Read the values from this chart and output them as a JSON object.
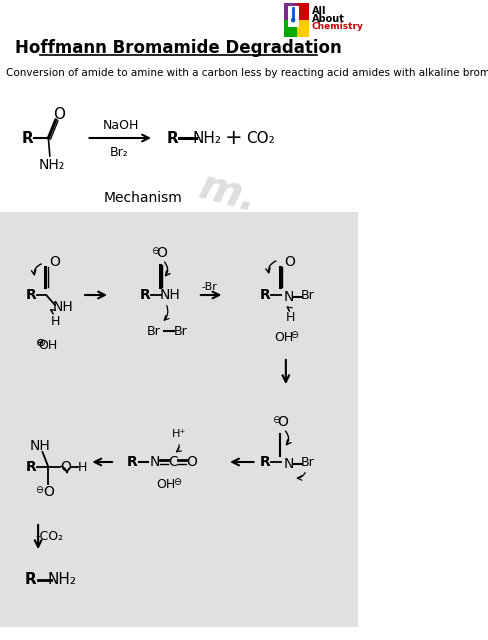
{
  "title": "Hoffmann Bromamide Degradation",
  "subtitle": "Conversion of amide to amine with a carbon less by reacting acid amides with alkaline bromine.",
  "bg_color": "#ffffff",
  "logo_colors": {
    "purple": "#7B2D8B",
    "red": "#CC0000",
    "green": "#00AA00",
    "yellow": "#FFCC00",
    "blue": "#0000CC",
    "white": "#ffffff"
  },
  "mechanism_label": "Mechanism",
  "light_gray_bg": "#e0e0e0"
}
